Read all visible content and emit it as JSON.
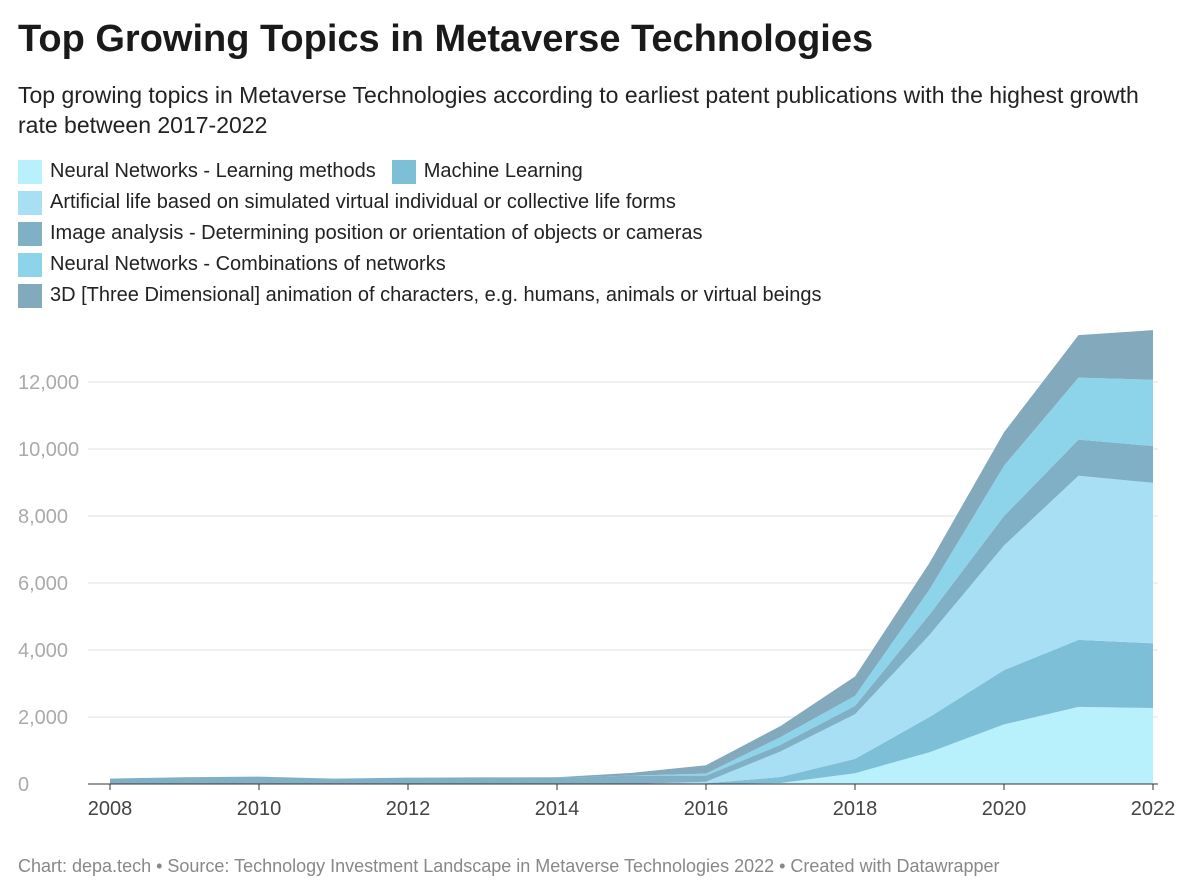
{
  "title": "Top Growing Topics in Metaverse Technologies",
  "subtitle": "Top growing topics in Metaverse Technologies according to earliest patent publications with the highest growth rate between 2017-2022",
  "footer": "Chart: depa.tech • Source: Technology Investment Landscape in Metaverse Technologies 2022 • Created with Datawrapper",
  "chart_data": {
    "type": "area",
    "stacked": true,
    "title": "Top Growing Topics in Metaverse Technologies",
    "subtitle": "Top growing topics in Metaverse Technologies according to earliest patent publications with the highest growth rate between 2017-2022",
    "xlabel": "",
    "ylabel": "",
    "x": [
      2008,
      2009,
      2010,
      2011,
      2012,
      2013,
      2014,
      2015,
      2016,
      2017,
      2018,
      2019,
      2020,
      2021,
      2022
    ],
    "x_ticks": [
      "2008",
      "2010",
      "2012",
      "2014",
      "2016",
      "2018",
      "2020",
      "2022"
    ],
    "y_ticks": [
      "0",
      "2,000",
      "4,000",
      "6,000",
      "8,000",
      "10,000",
      "12,000"
    ],
    "ylim": [
      0,
      13600
    ],
    "grid": true,
    "legend_position": "top",
    "series": [
      {
        "name": "Neural Networks - Learning methods",
        "color": "#b8f0fb",
        "values": [
          0,
          0,
          0,
          0,
          0,
          0,
          0,
          0,
          0,
          30,
          320,
          950,
          1780,
          2300,
          2270
        ]
      },
      {
        "name": "Machine Learning",
        "color": "#7dbfd6",
        "values": [
          0,
          0,
          0,
          0,
          0,
          0,
          0,
          0,
          20,
          180,
          430,
          1050,
          1620,
          2000,
          1930
        ]
      },
      {
        "name": "Artificial life based on simulated virtual individual or collective life forms",
        "color": "#a8dff5",
        "values": [
          0,
          0,
          0,
          0,
          0,
          0,
          0,
          0,
          50,
          760,
          1330,
          2450,
          3720,
          4900,
          4790
        ]
      },
      {
        "name": "Image analysis - Determining position or orientation of objects or cameras",
        "color": "#80b0c6",
        "values": [
          160,
          200,
          220,
          160,
          190,
          190,
          180,
          250,
          180,
          200,
          250,
          610,
          880,
          1080,
          1100
        ]
      },
      {
        "name": "Neural Networks - Combinations of networks",
        "color": "#8dd4ea",
        "values": [
          0,
          0,
          0,
          0,
          0,
          0,
          0,
          0,
          60,
          230,
          300,
          750,
          1500,
          1850,
          1980
        ]
      },
      {
        "name": "3D [Three Dimensional] animation of characters, e.g. humans, animals or virtual beings",
        "color": "#83a9bc",
        "values": [
          0,
          0,
          0,
          0,
          0,
          10,
          20,
          80,
          250,
          330,
          580,
          790,
          1000,
          1270,
          1480
        ]
      }
    ]
  }
}
